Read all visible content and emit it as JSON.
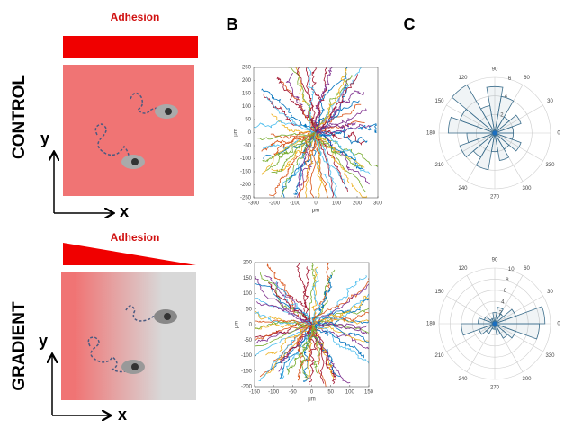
{
  "panel_labels": {
    "b": "B",
    "c": "C"
  },
  "control": {
    "label": "CONTROL",
    "adhesion": "Adhesion",
    "x_axis": "x",
    "y_axis": "y"
  },
  "gradient": {
    "label": "GRADIENT",
    "adhesion": "Adhesion",
    "x_axis": "x",
    "y_axis": "y"
  },
  "tracks": [
    {
      "xlabel": "μm",
      "ylabel": "μm",
      "xlim": [
        -300,
        300
      ],
      "ylim": [
        -250,
        250
      ],
      "xticks": [
        -300,
        -200,
        -100,
        0,
        100,
        200,
        300
      ],
      "yticks": [
        -250,
        -200,
        -150,
        -100,
        -50,
        0,
        50,
        100,
        150,
        200,
        250
      ]
    },
    {
      "xlabel": "μm",
      "ylabel": "μm",
      "xlim": [
        -150,
        150
      ],
      "ylim": [
        -200,
        200
      ],
      "xticks": [
        -150,
        -100,
        -50,
        0,
        50,
        100,
        150
      ],
      "yticks": [
        -200,
        -150,
        -100,
        -50,
        0,
        50,
        100,
        150,
        200
      ]
    }
  ],
  "rose": [
    {
      "rlim": [
        0,
        6
      ],
      "rticks": [
        2,
        4,
        6
      ],
      "angles": [
        0,
        30,
        60,
        90,
        120,
        150,
        180,
        210,
        240,
        270,
        300,
        330
      ],
      "bin_width": 20,
      "color": "#3c6e8c",
      "values": [
        2,
        3,
        2,
        4,
        5,
        3,
        6,
        4,
        5,
        3,
        4,
        3,
        4,
        2,
        3,
        2,
        3,
        2
      ]
    },
    {
      "rlim": [
        0,
        10
      ],
      "rticks": [
        2,
        4,
        6,
        8,
        10
      ],
      "angles": [
        0,
        30,
        60,
        90,
        120,
        150,
        180,
        210,
        240,
        270,
        300,
        330
      ],
      "bin_width": 20,
      "color": "#3c6e8c",
      "values": [
        9,
        4,
        2,
        3,
        2,
        1,
        1,
        2,
        3,
        6,
        3,
        2,
        1,
        1,
        2,
        3,
        4,
        8
      ]
    }
  ]
}
